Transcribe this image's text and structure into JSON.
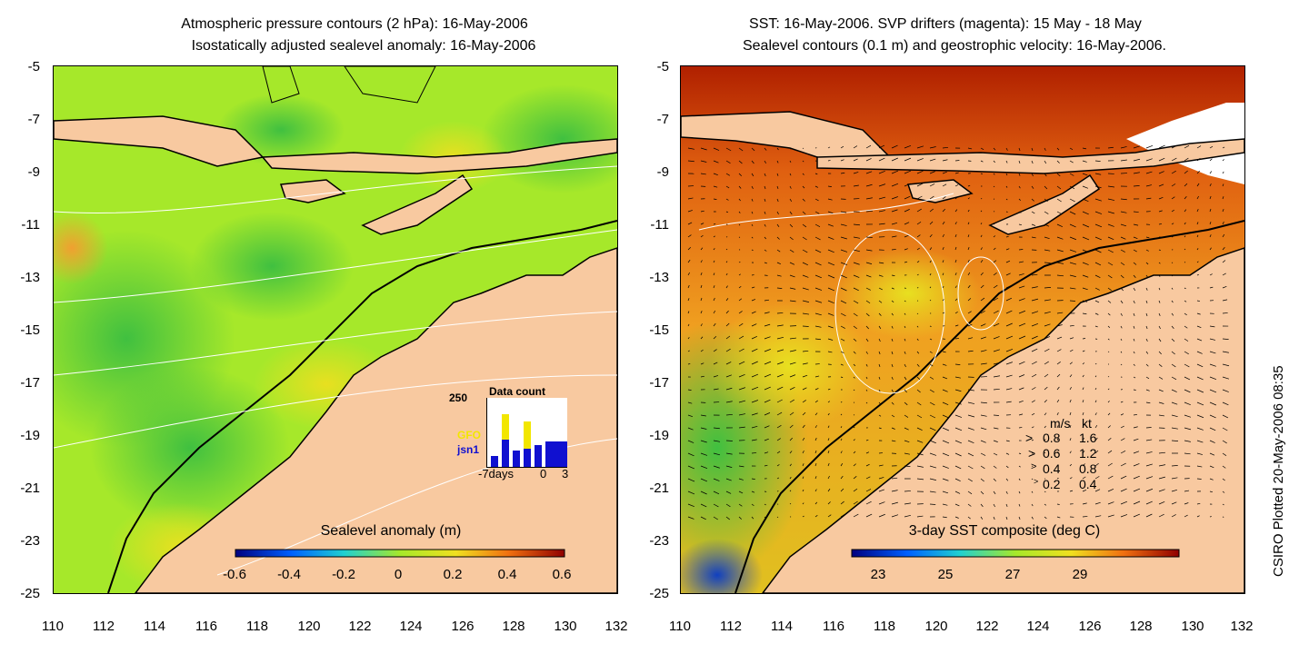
{
  "left_panel": {
    "title_line1": "Atmospheric pressure contours (2 hPa): 16-May-2006",
    "title_line2": "Isostatically adjusted sealevel anomaly: 16-May-2006",
    "colorbar_label": "Sealevel anomaly (m)",
    "colorbar_ticks": [
      "-0.6",
      "-0.4",
      "-0.2",
      "0",
      "0.2",
      "0.4",
      "0.6"
    ],
    "inset": {
      "title": "Data count",
      "ymax_label": "250",
      "sat1": "GFO",
      "sat2": "jsn1",
      "x_start": "-7days",
      "x_zero": "0",
      "x_end": "3",
      "sat1_color": "#f2e600",
      "sat2_color": "#1010d0"
    }
  },
  "right_panel": {
    "title_line1": "SST: 16-May-2006. SVP drifters (magenta): 15 May - 18 May",
    "title_line2": "Sealevel contours (0.1 m) and geostrophic velocity: 16-May-2006.",
    "colorbar_label": "3-day SST composite (deg C)",
    "colorbar_ticks": [
      "23",
      "25",
      "27",
      "29"
    ],
    "velocity_legend": {
      "header_ms": "m/s",
      "header_kt": "kt",
      "rows": [
        {
          "ms": "0.8",
          "kt": "1.6"
        },
        {
          "ms": "0.6",
          "kt": "1.2"
        },
        {
          "ms": "0.4",
          "kt": "0.8"
        },
        {
          "ms": "0.2",
          "kt": "0.4"
        }
      ]
    }
  },
  "axes": {
    "y_ticks": [
      "-5",
      "-7",
      "-9",
      "-11",
      "-13",
      "-15",
      "-17",
      "-19",
      "-21",
      "-23",
      "-25"
    ],
    "x_ticks": [
      "110",
      "112",
      "114",
      "116",
      "118",
      "120",
      "122",
      "124",
      "126",
      "128",
      "130",
      "132"
    ]
  },
  "credit": "CSIRO Plotted 20-May-2006 08:35",
  "colors": {
    "land": "#f8c9a0",
    "sla_base": "#a6e82a",
    "sst_base": "#f0a020"
  }
}
